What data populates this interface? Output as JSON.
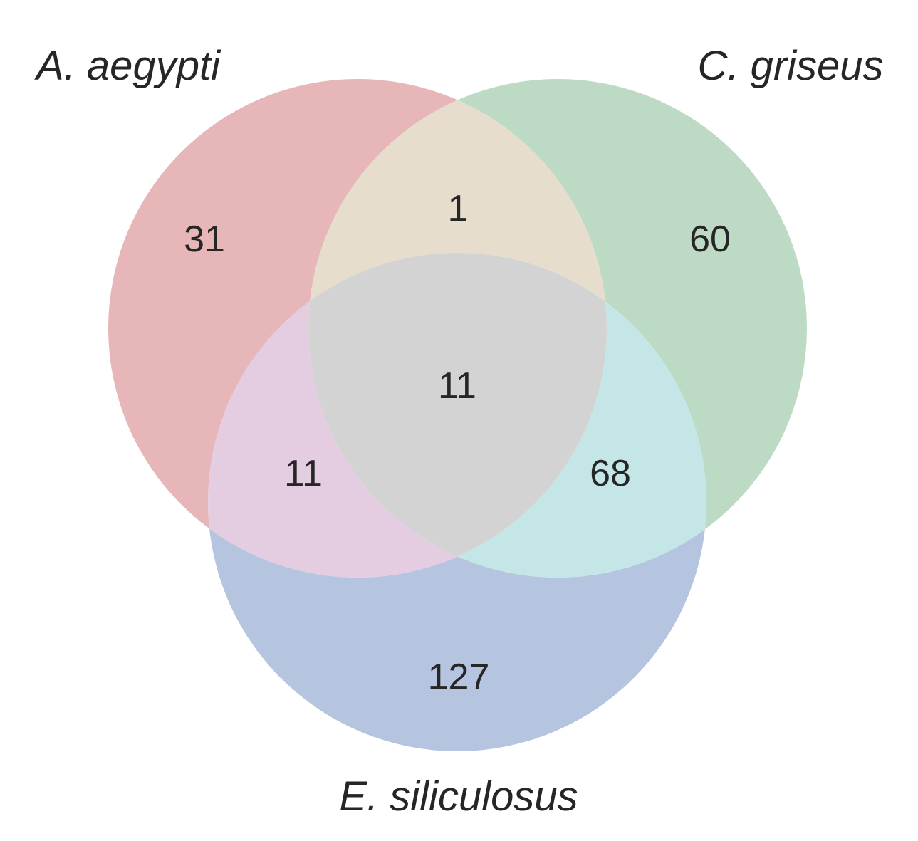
{
  "chart_data": {
    "type": "venn3",
    "sets": [
      {
        "name": "A. aegypti",
        "color": "#e6b6b8"
      },
      {
        "name": "C. griseus",
        "color": "#bddbc4"
      },
      {
        "name": "E. siliculosus",
        "color": "#b6c5df"
      }
    ],
    "regions": {
      "a_only": {
        "label": "31",
        "value": 31,
        "color": "#e6b6b8"
      },
      "b_only": {
        "label": "60",
        "value": 60,
        "color": "#bddbc4"
      },
      "c_only": {
        "label": "127",
        "value": 127,
        "color": "#b6c5df"
      },
      "ab": {
        "label": "1",
        "value": 1,
        "color": "#e6ddcd"
      },
      "ac": {
        "label": "11",
        "value": 11,
        "color": "#e4cde1"
      },
      "bc": {
        "label": "68",
        "value": 68,
        "color": "#c5e6e6"
      },
      "abc": {
        "label": "11",
        "value": 11,
        "color": "#d3d3d3"
      }
    }
  }
}
